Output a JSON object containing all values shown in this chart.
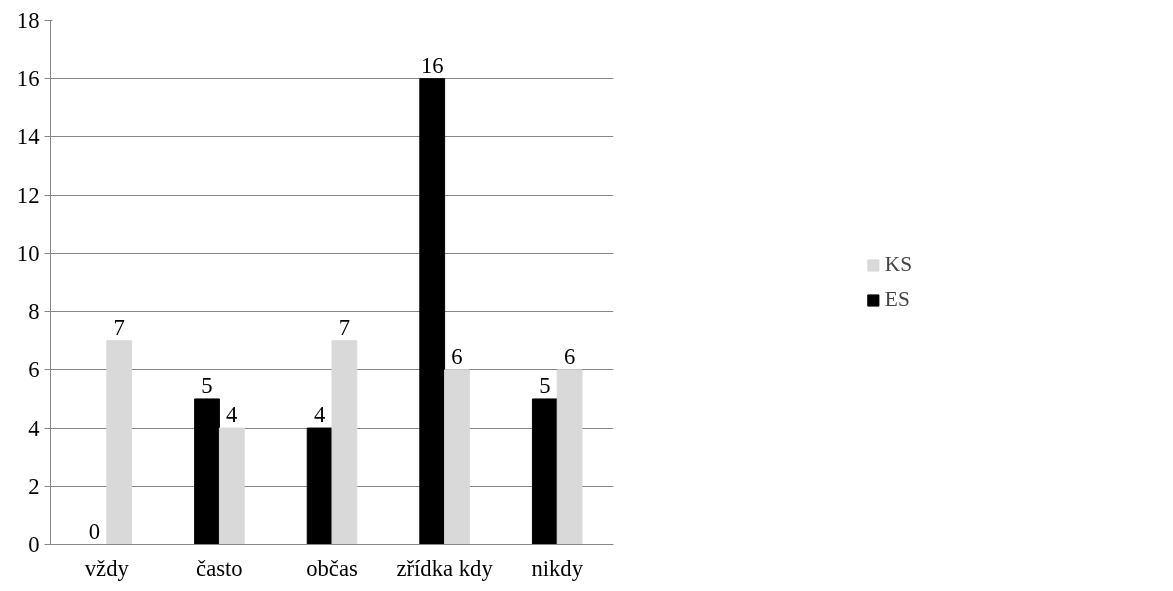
{
  "chart_data": {
    "type": "bar",
    "categories": [
      "vždy",
      "často",
      "občas",
      "zřídka kdy",
      "nikdy"
    ],
    "series": [
      {
        "name": "ES",
        "color": "#000000",
        "values": [
          0,
          5,
          4,
          16,
          5
        ]
      },
      {
        "name": "KS",
        "color": "#d9d9d9",
        "values": [
          7,
          4,
          7,
          6,
          6
        ]
      }
    ],
    "ylim": [
      0,
      18
    ],
    "yticks": [
      0,
      2,
      4,
      6,
      8,
      10,
      12,
      14,
      16,
      18
    ],
    "grid": "y",
    "legend": "right",
    "data_labels": true
  }
}
